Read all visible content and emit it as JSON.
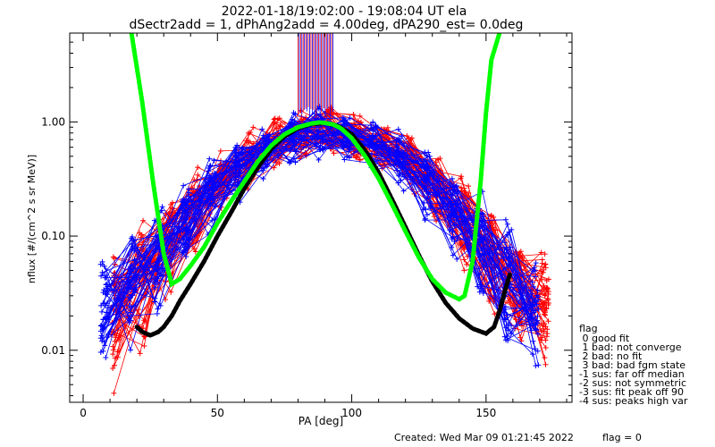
{
  "chart_data": {
    "type": "line",
    "title_line1": "2022-01-18/19:02:00 - 19:08:04 UT ela",
    "title_line2": "dSectr2add = 1, dPhAng2add = 4.00deg, dPA290_est=    0.0deg",
    "xlabel": "PA [deg]",
    "ylabel": "nflux [#/(cm^2 s sr MeV)]",
    "xlim": [
      -5,
      182
    ],
    "ylim": [
      0.0035,
      6
    ],
    "yscale": "log",
    "xticks": [
      0,
      50,
      100,
      150
    ],
    "yticks": [
      {
        "value": 0.01,
        "label": "0.01"
      },
      {
        "value": 0.1,
        "label": "0.10"
      },
      {
        "value": 1,
        "label": "1.00"
      }
    ],
    "colors": {
      "red": "#ff0000",
      "blue": "#0000ff",
      "green": "#00ff00",
      "black": "#000000"
    },
    "series_red": {
      "count": 55,
      "pa_start": 12,
      "pa_end": 172,
      "pa_step": 10,
      "peak": 0.9,
      "left_bg": 0.006,
      "right_bg": 0.012
    },
    "series_blue": {
      "count": 50,
      "pa_start": 8,
      "pa_end": 168,
      "pa_step": 10,
      "peak": 0.85,
      "left_bg": 0.012,
      "right_bg": 0.009
    },
    "fit_green": {
      "x": [
        18,
        22,
        26,
        30,
        33,
        36,
        40,
        45,
        50,
        55,
        60,
        65,
        70,
        75,
        80,
        85,
        88,
        90,
        93,
        96,
        100,
        105,
        110,
        115,
        120,
        125,
        130,
        135,
        140,
        142,
        145,
        148,
        150,
        152,
        155
      ],
      "y": [
        6,
        1.5,
        0.3,
        0.07,
        0.038,
        0.042,
        0.055,
        0.08,
        0.13,
        0.2,
        0.3,
        0.45,
        0.62,
        0.78,
        0.9,
        0.97,
        0.99,
        0.98,
        0.95,
        0.88,
        0.72,
        0.5,
        0.32,
        0.19,
        0.11,
        0.065,
        0.042,
        0.032,
        0.028,
        0.03,
        0.06,
        0.3,
        1.2,
        3.5,
        6
      ]
    },
    "fit_black": {
      "x": [
        20,
        22,
        25,
        28,
        30,
        33,
        36,
        40,
        45,
        50,
        55,
        60,
        65,
        70,
        75,
        80,
        85,
        90,
        95,
        100,
        105,
        110,
        115,
        120,
        125,
        130,
        135,
        140,
        145,
        150,
        153,
        155,
        157,
        159
      ],
      "y": [
        0.016,
        0.0145,
        0.0135,
        0.0145,
        0.016,
        0.02,
        0.027,
        0.038,
        0.06,
        0.1,
        0.16,
        0.26,
        0.4,
        0.58,
        0.75,
        0.88,
        0.96,
        0.98,
        0.92,
        0.78,
        0.56,
        0.36,
        0.21,
        0.12,
        0.068,
        0.04,
        0.026,
        0.019,
        0.0155,
        0.014,
        0.016,
        0.022,
        0.033,
        0.047
      ]
    },
    "upper_band": {
      "x_from": 80,
      "x_to": 93,
      "y_from": 1.05
    }
  },
  "legend": {
    "title": "flag",
    "items": [
      " 0 good fit",
      " 1 bad: not converge",
      " 2 bad: no fit",
      " 3 bad: bad fgm state",
      "-1 sus: far off median",
      "-2 sus: not symmetric",
      "-3 sus: fit peak off 90",
      "-4 sus: peaks high var"
    ]
  },
  "footer": {
    "created": "Created: Wed Mar 09 01:21:45 2022",
    "flag": "flag = 0"
  }
}
